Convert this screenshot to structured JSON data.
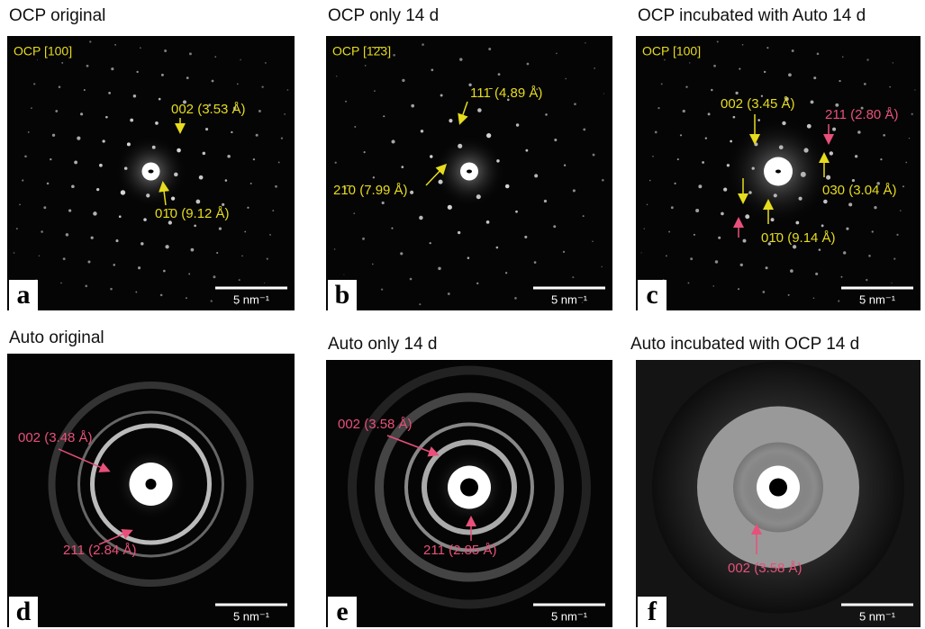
{
  "panels": [
    {
      "title": "OCP original",
      "zone": "OCP [100]",
      "letter": "a",
      "scale_bar": "5 nm⁻¹",
      "annotations": [
        {
          "text": "002 (3.53 Å)",
          "color": "#e6dc1e"
        },
        {
          "text": "01̄0 (9.12 Å)",
          "color": "#e6dc1e"
        }
      ]
    },
    {
      "title": "OCP only 14 d",
      "zone": "OCP [1̄2̄3]",
      "letter": "b",
      "scale_bar": "5 nm⁻¹",
      "annotations": [
        {
          "text": "111̄ (4.89 Å)",
          "color": "#e6dc1e"
        },
        {
          "text": "21̄0 (7.99 Å)",
          "color": "#e6dc1e"
        }
      ]
    },
    {
      "title": "OCP incubated with Auto 14 d",
      "zone": "OCP [100]",
      "letter": "c",
      "scale_bar": "5 nm⁻¹",
      "annotations": [
        {
          "text": "002 (3.45 Å)",
          "color": "#e6dc1e"
        },
        {
          "text": "211 (2.80 Å)",
          "color": "#e8507a"
        },
        {
          "text": "030 (3.04 Å)",
          "color": "#e6dc1e"
        },
        {
          "text": "01̄0 (9.14 Å)",
          "color": "#e6dc1e"
        }
      ]
    },
    {
      "title": "Auto original",
      "zone": null,
      "letter": "d",
      "scale_bar": "5 nm⁻¹",
      "annotations": [
        {
          "text": "002 (3.48 Å)",
          "color": "#e8507a"
        },
        {
          "text": "211 (2.84 Å)",
          "color": "#e8507a"
        }
      ]
    },
    {
      "title": "Auto only 14 d",
      "zone": null,
      "letter": "e",
      "scale_bar": "5 nm⁻¹",
      "annotations": [
        {
          "text": "002 (3.58 Å)",
          "color": "#e8507a"
        },
        {
          "text": "211 (2.85 Å)",
          "color": "#e8507a"
        }
      ]
    },
    {
      "title": "Auto incubated with OCP 14 d",
      "zone": null,
      "letter": "f",
      "scale_bar": "5 nm⁻¹",
      "annotations": [
        {
          "text": "002 (3.58 Å)",
          "color": "#e8507a"
        }
      ]
    }
  ]
}
